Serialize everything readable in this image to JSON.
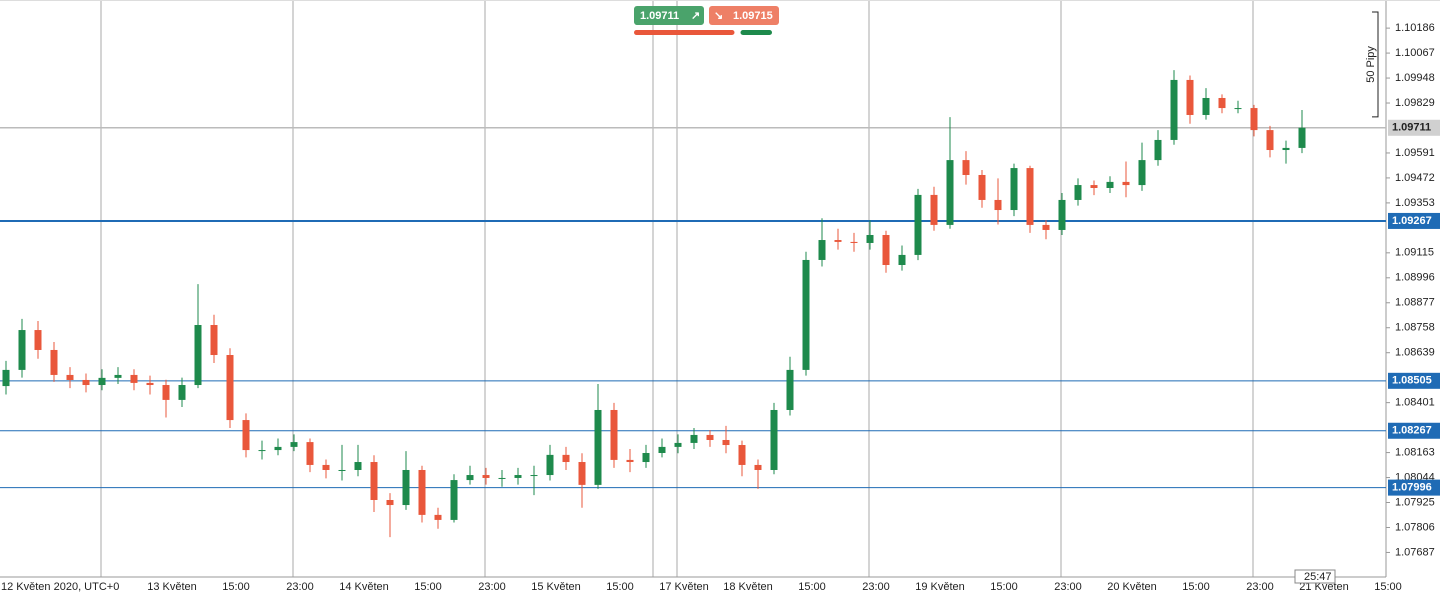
{
  "chart_data": {
    "type": "candlestick",
    "categories": [
      null,
      null,
      "12 Květen 2020, UTC+0",
      null,
      null,
      null,
      null,
      null,
      null,
      null,
      "13 Květen",
      null,
      null,
      null,
      "15:00",
      null,
      null,
      null,
      "23:00",
      null,
      null,
      null,
      "14 Květen",
      null,
      null,
      null,
      "15:00",
      null,
      null,
      null,
      "23:00",
      null,
      null,
      null,
      "15 Květen",
      null,
      null,
      null,
      "15:00",
      null,
      null,
      null,
      "17 Květen",
      null,
      null,
      null,
      "18 Květen",
      null,
      null,
      null,
      "15:00",
      null,
      null,
      null,
      "23:00",
      null,
      null,
      null,
      "19 Květen",
      null,
      null,
      null,
      "15:00",
      null,
      null,
      null,
      "23:00",
      null,
      null,
      null,
      "20 Květen",
      null,
      null,
      null,
      "15:00",
      null,
      null,
      null,
      "23:00",
      null,
      null,
      null,
      "21 Květen",
      null,
      null,
      null,
      "15:00"
    ],
    "open": [
      1.0848,
      1.08557,
      1.08747,
      1.08652,
      1.08533,
      1.08509,
      1.08485,
      1.08519,
      1.08533,
      1.08495,
      1.08485,
      1.08414,
      1.08485,
      1.08771,
      1.08628,
      1.08318,
      1.08175,
      1.08175,
      1.0819,
      1.08213,
      1.08104,
      1.0808,
      1.0808,
      1.08118,
      1.07937,
      1.07913,
      1.0808,
      1.07866,
      1.07842,
      1.08032,
      1.08056,
      1.08042,
      1.08042,
      1.08056,
      1.08056,
      1.08152,
      1.08118,
      1.08009,
      1.08366,
      1.08128,
      1.08118,
      1.08161,
      1.0819,
      1.08209,
      1.08247,
      1.08223,
      1.08199,
      1.08104,
      1.0808,
      1.08366,
      1.08557,
      1.09081,
      1.09176,
      1.09167,
      1.09162,
      1.092,
      1.09057,
      1.09105,
      1.09391,
      1.09248,
      1.09557,
      1.09486,
      1.09367,
      1.09319,
      1.09519,
      1.09248,
      1.09224,
      1.09367,
      1.09438,
      1.09424,
      1.09453,
      1.09438,
      1.09557,
      1.09653,
      1.09939,
      1.09772,
      1.09853,
      1.09805,
      1.09805,
      1.097,
      1.09605,
      1.09615,
      null,
      null,
      null,
      null,
      null
    ],
    "high": [
      1.086,
      1.088,
      1.0879,
      1.0869,
      1.0857,
      1.0854,
      1.0856,
      1.0857,
      1.0856,
      1.0853,
      1.0851,
      1.0852,
      1.08966,
      1.0882,
      1.0866,
      1.0835,
      1.0822,
      1.0823,
      1.0825,
      1.0823,
      1.0813,
      1.082,
      1.082,
      1.0815,
      1.0797,
      1.0817,
      1.081,
      1.079,
      1.0806,
      1.081,
      1.0809,
      1.0808,
      1.0809,
      1.081,
      1.082,
      1.0819,
      1.0816,
      1.0849,
      1.084,
      1.0818,
      1.082,
      1.0823,
      1.0825,
      1.0828,
      1.0827,
      1.0829,
      1.0822,
      1.0813,
      1.084,
      1.0862,
      1.0912,
      1.0928,
      1.0923,
      1.0921,
      1.0927,
      1.0922,
      1.0915,
      1.0942,
      1.0943,
      1.09762,
      1.096,
      1.0951,
      1.0947,
      1.0954,
      1.0953,
      1.0927,
      1.094,
      1.0947,
      1.0946,
      1.0948,
      1.0955,
      1.0964,
      1.097,
      1.09986,
      1.0996,
      1.099,
      1.0987,
      1.0984,
      1.0982,
      1.0972,
      1.0965,
      1.09796,
      null,
      null,
      null,
      null,
      null
    ],
    "low": [
      1.0844,
      1.0852,
      1.0861,
      1.085,
      1.0847,
      1.0845,
      1.0846,
      1.0849,
      1.0846,
      1.0844,
      1.0833,
      1.0838,
      1.0847,
      1.0859,
      1.0828,
      1.0814,
      1.0813,
      1.0815,
      1.0817,
      1.0807,
      1.0804,
      1.0803,
      1.0805,
      1.0788,
      1.0776,
      1.0789,
      1.0783,
      1.078,
      1.0783,
      1.0801,
      1.0801,
      1.08,
      1.0801,
      1.0796,
      1.0803,
      1.0808,
      1.079,
      1.0799,
      1.0809,
      1.0807,
      1.0809,
      1.0814,
      1.0816,
      1.0818,
      1.0819,
      1.0816,
      1.0805,
      1.0799,
      1.0806,
      1.0834,
      1.0853,
      1.0905,
      1.0913,
      1.0912,
      1.0913,
      1.0902,
      1.0903,
      1.0908,
      1.0922,
      1.0923,
      1.0944,
      1.0933,
      1.0925,
      1.0929,
      1.0921,
      1.0918,
      1.092,
      1.0934,
      1.0939,
      1.094,
      1.0938,
      1.0941,
      1.0953,
      1.0963,
      1.0973,
      1.0975,
      1.0978,
      1.0978,
      1.0967,
      1.0957,
      1.0954,
      1.0959,
      null,
      null,
      null,
      null,
      null
    ],
    "close": [
      1.08557,
      1.08747,
      1.08652,
      1.08533,
      1.08509,
      1.08485,
      1.08519,
      1.08533,
      1.08495,
      1.08485,
      1.08414,
      1.08485,
      1.08771,
      1.08628,
      1.08318,
      1.08175,
      1.08175,
      1.0819,
      1.08213,
      1.08104,
      1.0808,
      1.0808,
      1.08118,
      1.07937,
      1.07913,
      1.0808,
      1.07866,
      1.07842,
      1.08032,
      1.08056,
      1.08042,
      1.08042,
      1.08056,
      1.08056,
      1.08152,
      1.08118,
      1.08009,
      1.08366,
      1.08128,
      1.08118,
      1.08161,
      1.0819,
      1.08209,
      1.08247,
      1.08223,
      1.08199,
      1.08104,
      1.0808,
      1.08366,
      1.08557,
      1.09081,
      1.09176,
      1.09167,
      1.09162,
      1.092,
      1.09057,
      1.09105,
      1.09391,
      1.09248,
      1.09557,
      1.09486,
      1.09367,
      1.09319,
      1.09519,
      1.09248,
      1.09224,
      1.09367,
      1.09438,
      1.09424,
      1.09453,
      1.09438,
      1.09557,
      1.09653,
      1.09939,
      1.09772,
      1.09853,
      1.09805,
      1.09805,
      1.097,
      1.09605,
      1.09615,
      1.09711,
      null,
      null,
      null,
      null,
      null
    ],
    "up_color": "#1e8a4c",
    "down_color": "#e9573b",
    "ylim": [
      1.0757,
      1.1032
    ],
    "yticks": [
      1.10186,
      1.10067,
      1.09948,
      1.09829,
      1.09591,
      1.09472,
      1.09353,
      1.09115,
      1.08996,
      1.08877,
      1.08758,
      1.08639,
      1.08401,
      1.08163,
      1.08044,
      1.07925,
      1.07806,
      1.07687
    ],
    "levels": [
      1.09267,
      1.08505,
      1.08267,
      1.07996
    ],
    "level_color": "#1f6bb5",
    "current_price": 1.09711,
    "pip_scale": {
      "label": "50 Pipy",
      "pips": 50
    },
    "countdown": "25:47",
    "widget": {
      "left_price": "1.09711",
      "right_price": "1.09715",
      "bar_split": [
        75,
        25
      ]
    }
  }
}
